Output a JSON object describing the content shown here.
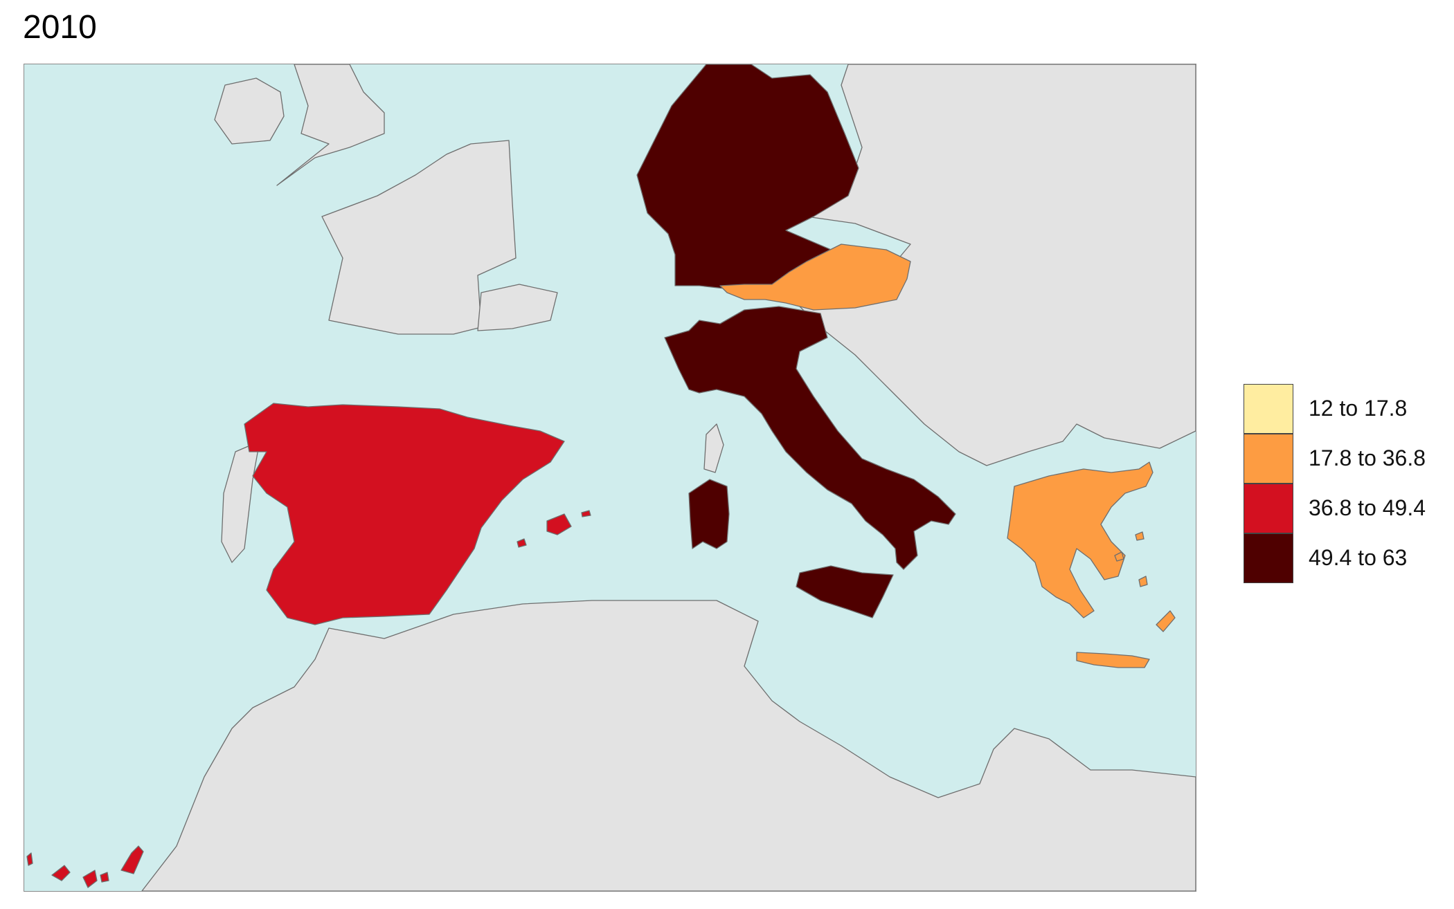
{
  "title": "2010",
  "colors": {
    "sea": "#d0eded",
    "land_default": "#e3e3e3",
    "border": "#6e6e6e"
  },
  "legend": {
    "items": [
      {
        "label": "12 to 17.8",
        "color": "#ffeda0"
      },
      {
        "label": "17.8 to 36.8",
        "color": "#fd9c42"
      },
      {
        "label": "36.8 to 49.4",
        "color": "#d31020"
      },
      {
        "label": "49.4 to 63",
        "color": "#4f0000"
      }
    ]
  },
  "regions": [
    {
      "name": "Germany",
      "class": "49.4 to 63",
      "color": "#4f0000"
    },
    {
      "name": "Italy",
      "class": "49.4 to 63",
      "color": "#4f0000"
    },
    {
      "name": "Spain",
      "class": "36.8 to 49.4",
      "color": "#d31020"
    },
    {
      "name": "Austria",
      "class": "17.8 to 36.8",
      "color": "#fd9c42"
    },
    {
      "name": "Greece",
      "class": "17.8 to 36.8",
      "color": "#fd9c42"
    }
  ]
}
